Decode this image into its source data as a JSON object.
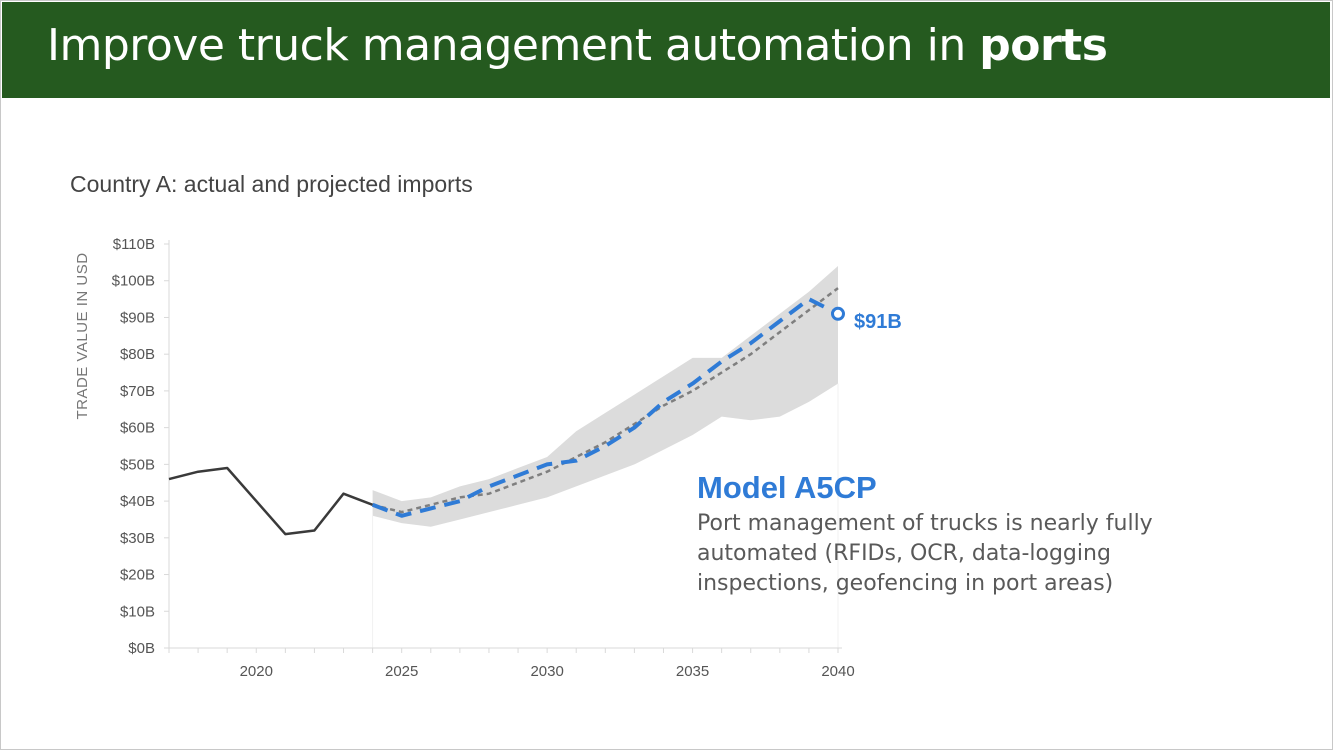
{
  "slide": {
    "title_regular": "Improve truck management automation in ",
    "title_bold": "ports"
  },
  "chart_data": {
    "type": "line",
    "title": "Country A: actual and projected imports",
    "ylabel": "TRADE VALUE IN USD",
    "xlabel": "",
    "xlim": [
      2017,
      2040
    ],
    "ylim": [
      0,
      110
    ],
    "x_ticks": [
      2020,
      2025,
      2030,
      2035,
      2040
    ],
    "x_tick_labels": [
      "2020",
      "2025",
      "2030",
      "2035",
      "2040"
    ],
    "y_ticks": [
      0,
      10,
      20,
      30,
      40,
      50,
      60,
      70,
      80,
      90,
      100,
      110
    ],
    "y_tick_labels": [
      "$0B",
      "$10B",
      "$20B",
      "$30B",
      "$40B",
      "$50B",
      "$60B",
      "$70B",
      "$80B",
      "$90B",
      "$100B",
      "$110B"
    ],
    "grid": false,
    "colors": {
      "actual": "#3a3a3a",
      "model": "#2f7bd6",
      "baseline": "#7f7f7f",
      "band": "#dcdcdc",
      "axis": "#d9d9d9"
    },
    "series": [
      {
        "role": "actual",
        "x": [
          2017,
          2018,
          2019,
          2020,
          2021,
          2022,
          2023,
          2024
        ],
        "y": [
          46,
          48,
          49,
          40,
          31,
          32,
          42,
          39
        ]
      },
      {
        "role": "model",
        "x": [
          2024,
          2025,
          2026,
          2027,
          2028,
          2029,
          2030,
          2031,
          2032,
          2033,
          2034,
          2035,
          2036,
          2037,
          2038,
          2039,
          2040
        ],
        "y": [
          39,
          36,
          38,
          40,
          44,
          47,
          50,
          51,
          55,
          60,
          67,
          72,
          78,
          83,
          89,
          95,
          91
        ]
      },
      {
        "role": "baseline",
        "x": [
          2024,
          2025,
          2026,
          2027,
          2028,
          2029,
          2030,
          2031,
          2032,
          2033,
          2034,
          2035,
          2036,
          2037,
          2038,
          2039,
          2040
        ],
        "y": [
          39,
          37,
          39,
          41,
          42,
          45,
          48,
          52,
          56,
          61,
          66,
          70,
          75,
          80,
          86,
          92,
          98
        ]
      }
    ],
    "band": {
      "x": [
        2024,
        2025,
        2026,
        2027,
        2028,
        2029,
        2030,
        2031,
        2032,
        2033,
        2034,
        2035,
        2036,
        2037,
        2038,
        2039,
        2040
      ],
      "upper": [
        43,
        40,
        41,
        44,
        46,
        49,
        52,
        59,
        64,
        69,
        74,
        79,
        79,
        85,
        91,
        97,
        104
      ],
      "lower": [
        36,
        34,
        33,
        35,
        37,
        39,
        41,
        44,
        47,
        50,
        54,
        58,
        63,
        62,
        63,
        67,
        72
      ]
    },
    "end_label": "$91B",
    "annotation": {
      "title": "Model A5CP",
      "text": "Port management of trucks is nearly fully automated (RFIDs, OCR, data-logging inspections, geofencing in port areas)"
    }
  }
}
